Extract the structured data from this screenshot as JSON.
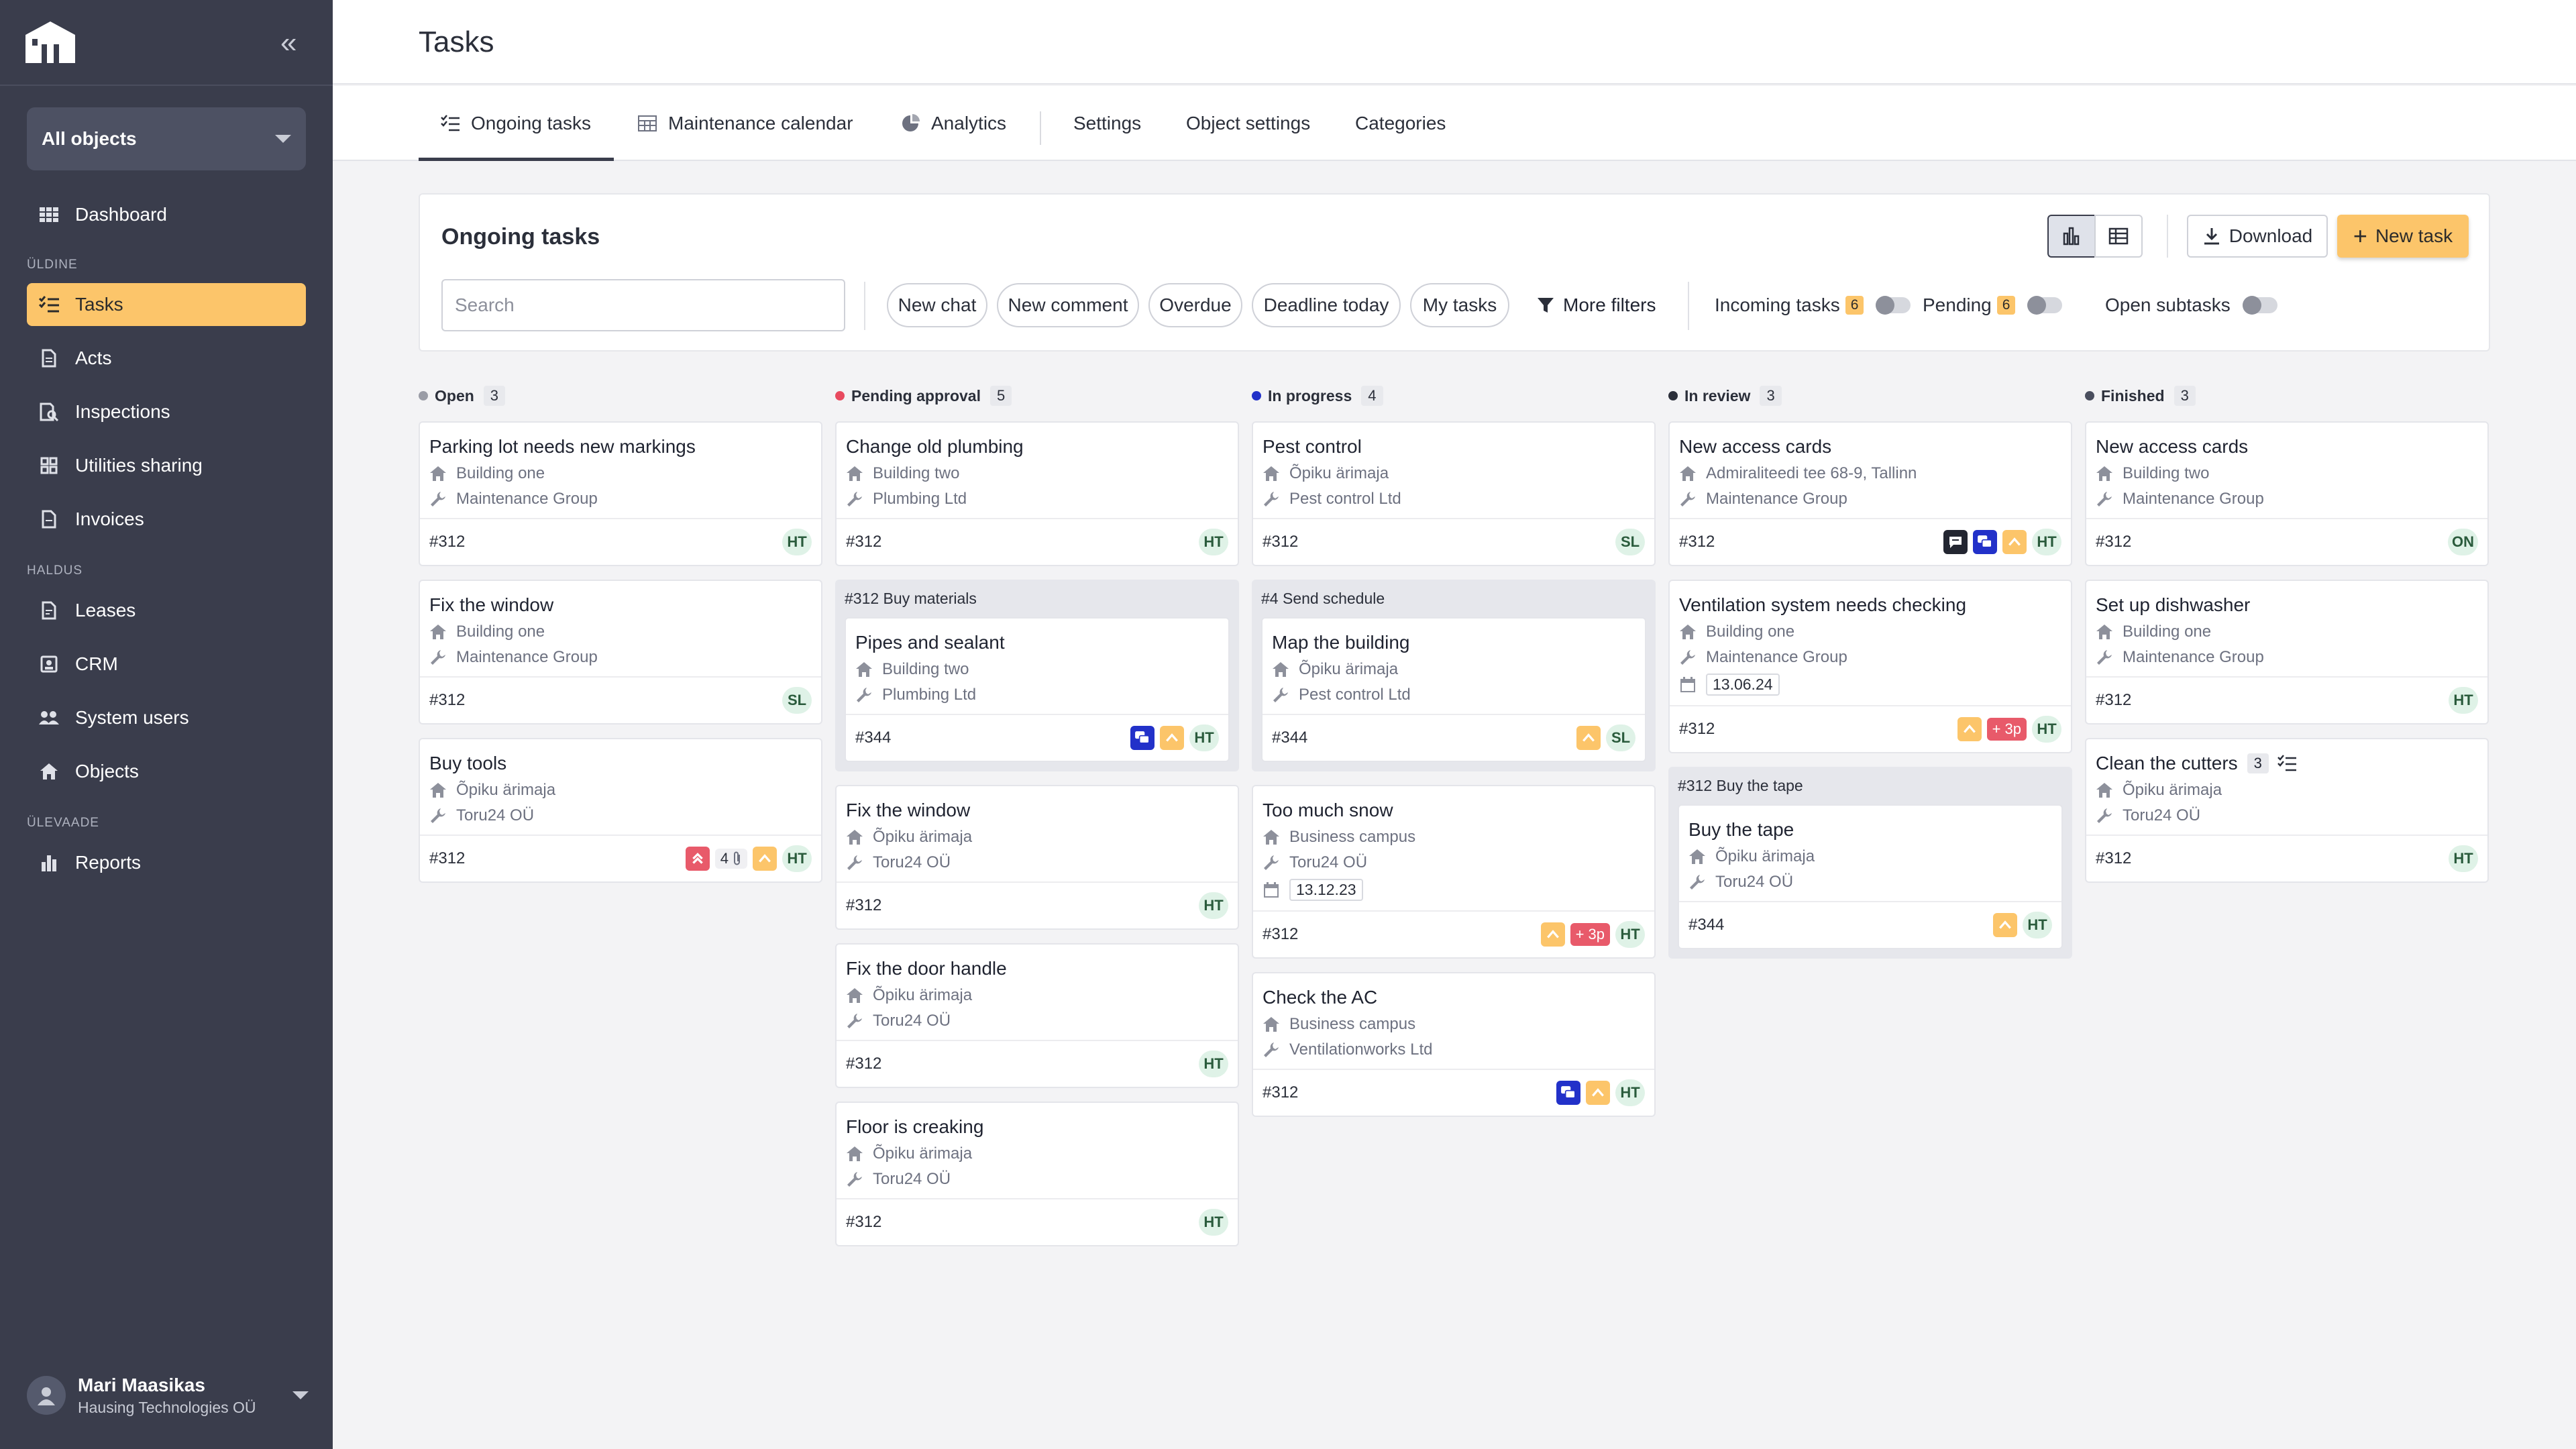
{
  "app": {
    "page_title": "Tasks",
    "object_selector": "All objects"
  },
  "sidebar": {
    "sections": [
      "ÜLDINE",
      "HALDUS",
      "ÜLEVAADE"
    ],
    "items": [
      {
        "label": "Dashboard",
        "icon": "dashboard-icon"
      },
      {
        "label": "Tasks",
        "icon": "tasks-icon",
        "active": true
      },
      {
        "label": "Acts",
        "icon": "document-icon"
      },
      {
        "label": "Inspections",
        "icon": "inspection-icon"
      },
      {
        "label": "Utilities sharing",
        "icon": "grid-icon"
      },
      {
        "label": "Invoices",
        "icon": "invoice-icon"
      },
      {
        "label": "Leases",
        "icon": "lease-icon"
      },
      {
        "label": "CRM",
        "icon": "crm-icon"
      },
      {
        "label": "System users",
        "icon": "users-icon"
      },
      {
        "label": "Objects",
        "icon": "home-icon"
      },
      {
        "label": "Reports",
        "icon": "bar-chart-icon"
      }
    ],
    "user": {
      "name": "Mari Maasikas",
      "company": "Hausing Technologies OÜ"
    }
  },
  "tabs": [
    {
      "label": "Ongoing tasks",
      "icon": "list-icon",
      "active": true
    },
    {
      "label": "Maintenance calendar",
      "icon": "calendar-icon"
    },
    {
      "label": "Analytics",
      "icon": "pie-chart-icon"
    },
    {
      "label": "Settings"
    },
    {
      "label": "Object settings"
    },
    {
      "label": "Categories"
    }
  ],
  "panel": {
    "title": "Ongoing tasks",
    "search_placeholder": "Search",
    "chips": [
      "New chat",
      "New comment",
      "Overdue",
      "Deadline today",
      "My tasks"
    ],
    "more_filters": "More filters",
    "toggles": [
      {
        "label": "Incoming tasks",
        "count": "6"
      },
      {
        "label": "Pending",
        "count": "6"
      },
      {
        "label": "Open subtasks"
      }
    ],
    "download": "Download",
    "new_task": "New task"
  },
  "columns": [
    {
      "name": "Open",
      "count": "3",
      "color": "#9a9ca6",
      "cards": [
        {
          "title": "Parking lot needs new markings",
          "location": "Building one",
          "contractor": "Maintenance Group",
          "id": "#312",
          "assignee": "HT"
        },
        {
          "title": "Fix the window",
          "location": "Building one",
          "contractor": "Maintenance Group",
          "id": "#312",
          "assignee": "SL"
        },
        {
          "title": "Buy tools",
          "location": "Õpiku ärimaja",
          "contractor": "Toru24 OÜ",
          "id": "#312",
          "assignee": "HT",
          "attach_count": "4"
        }
      ]
    },
    {
      "name": "Pending approval",
      "count": "5",
      "color": "#e84a5f",
      "cards": [
        {
          "title": "Change old plumbing",
          "location": "Building two",
          "contractor": "Plumbing Ltd",
          "id": "#312",
          "assignee": "HT"
        },
        {
          "group": "#312  Buy materials",
          "title": "Pipes and sealant",
          "location": "Building two",
          "contractor": "Plumbing Ltd",
          "id": "#344",
          "assignee": "HT"
        },
        {
          "title": "Fix the window",
          "location": "Õpiku ärimaja",
          "contractor": "Toru24 OÜ",
          "id": "#312",
          "assignee": "HT"
        },
        {
          "title": "Fix the door handle",
          "location": "Õpiku ärimaja",
          "contractor": "Toru24 OÜ",
          "id": "#312",
          "assignee": "HT"
        },
        {
          "title": "Floor is creaking",
          "location": "Õpiku ärimaja",
          "contractor": "Toru24 OÜ",
          "id": "#312",
          "assignee": "HT"
        }
      ]
    },
    {
      "name": "In progress",
      "count": "4",
      "color": "#2231c9",
      "cards": [
        {
          "title": "Pest control",
          "location": "Õpiku ärimaja",
          "contractor": "Pest control Ltd",
          "id": "#312",
          "assignee": "SL"
        },
        {
          "group": "#4  Send schedule",
          "title": "Map the building",
          "location": "Õpiku ärimaja",
          "contractor": "Pest control Ltd",
          "id": "#344",
          "assignee": "SL"
        },
        {
          "title": "Too much snow",
          "location": "Business campus",
          "contractor": "Toru24 OÜ",
          "date": "13.12.23",
          "id": "#312",
          "assignee": "HT",
          "plus": "+ 3p"
        },
        {
          "title": "Check the AC",
          "location": "Business campus",
          "contractor": "Ventilationworks Ltd",
          "id": "#312",
          "assignee": "HT"
        }
      ]
    },
    {
      "name": "In review",
      "count": "3",
      "color": "#2b2f3a",
      "cards": [
        {
          "title": "New access cards",
          "location": "Admiraliteedi tee 68-9, Tallinn",
          "contractor": "Maintenance Group",
          "id": "#312",
          "assignee": "HT"
        },
        {
          "title": "Ventilation system needs checking",
          "location": "Building one",
          "contractor": "Maintenance Group",
          "date": "13.06.24",
          "id": "#312",
          "assignee": "HT",
          "plus": "+ 3p"
        },
        {
          "group": "#312  Buy the tape",
          "title": "Buy the tape",
          "location": "Õpiku ärimaja",
          "contractor": "Toru24 OÜ",
          "id": "#344",
          "assignee": "HT"
        }
      ]
    },
    {
      "name": "Finished",
      "count": "3",
      "color": "#4a4e5e",
      "cards": [
        {
          "title": "New access cards",
          "location": "Building two",
          "contractor": "Maintenance Group",
          "id": "#312",
          "assignee": "ON"
        },
        {
          "title": "Set up dishwasher",
          "location": "Building one",
          "contractor": "Maintenance Group",
          "id": "#312",
          "assignee": "HT"
        },
        {
          "title": "Clean the cutters",
          "subtask_count": "3",
          "location": "Õpiku ärimaja",
          "contractor": "Toru24 OÜ",
          "id": "#312",
          "assignee": "HT"
        }
      ]
    }
  ]
}
